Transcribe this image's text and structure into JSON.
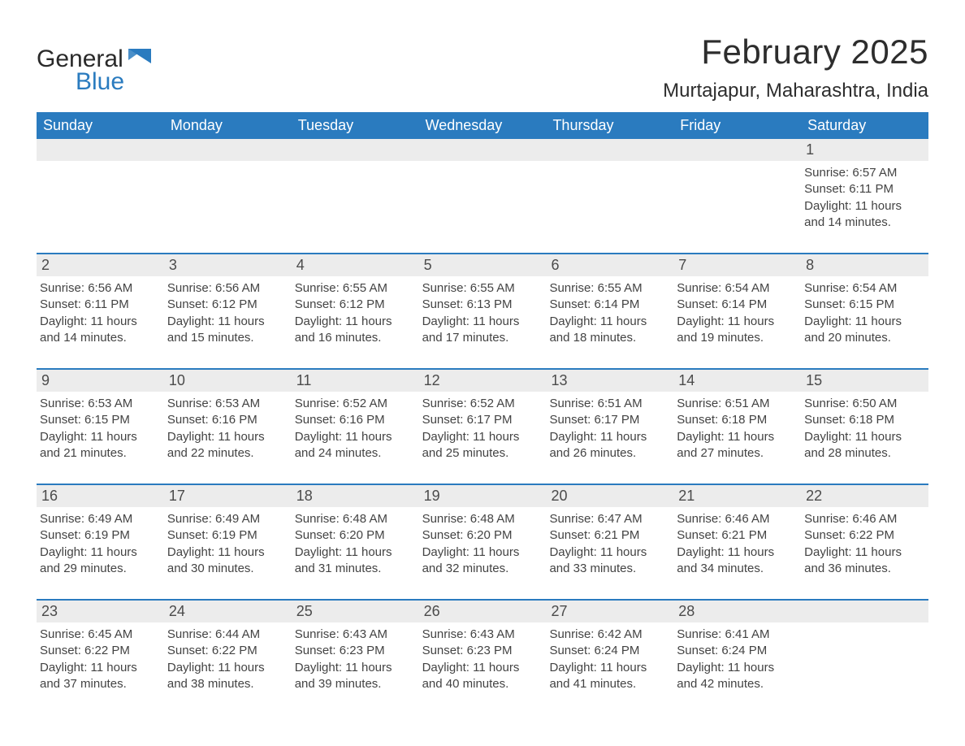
{
  "logo": {
    "word1": "General",
    "word2": "Blue",
    "tri_color": "#2a7bbf"
  },
  "header": {
    "month_title": "February 2025",
    "location": "Murtajapur, Maharashtra, India"
  },
  "colors": {
    "header_bar": "#2a7bbf",
    "header_text": "#ffffff",
    "daynum_bg": "#ececec",
    "week_border": "#2a7bbf",
    "body_text": "#434343"
  },
  "weekdays": [
    "Sunday",
    "Monday",
    "Tuesday",
    "Wednesday",
    "Thursday",
    "Friday",
    "Saturday"
  ],
  "weeks": [
    [
      null,
      null,
      null,
      null,
      null,
      null,
      {
        "n": "1",
        "sunrise": "Sunrise: 6:57 AM",
        "sunset": "Sunset: 6:11 PM",
        "day": "Daylight: 11 hours and 14 minutes."
      }
    ],
    [
      {
        "n": "2",
        "sunrise": "Sunrise: 6:56 AM",
        "sunset": "Sunset: 6:11 PM",
        "day": "Daylight: 11 hours and 14 minutes."
      },
      {
        "n": "3",
        "sunrise": "Sunrise: 6:56 AM",
        "sunset": "Sunset: 6:12 PM",
        "day": "Daylight: 11 hours and 15 minutes."
      },
      {
        "n": "4",
        "sunrise": "Sunrise: 6:55 AM",
        "sunset": "Sunset: 6:12 PM",
        "day": "Daylight: 11 hours and 16 minutes."
      },
      {
        "n": "5",
        "sunrise": "Sunrise: 6:55 AM",
        "sunset": "Sunset: 6:13 PM",
        "day": "Daylight: 11 hours and 17 minutes."
      },
      {
        "n": "6",
        "sunrise": "Sunrise: 6:55 AM",
        "sunset": "Sunset: 6:14 PM",
        "day": "Daylight: 11 hours and 18 minutes."
      },
      {
        "n": "7",
        "sunrise": "Sunrise: 6:54 AM",
        "sunset": "Sunset: 6:14 PM",
        "day": "Daylight: 11 hours and 19 minutes."
      },
      {
        "n": "8",
        "sunrise": "Sunrise: 6:54 AM",
        "sunset": "Sunset: 6:15 PM",
        "day": "Daylight: 11 hours and 20 minutes."
      }
    ],
    [
      {
        "n": "9",
        "sunrise": "Sunrise: 6:53 AM",
        "sunset": "Sunset: 6:15 PM",
        "day": "Daylight: 11 hours and 21 minutes."
      },
      {
        "n": "10",
        "sunrise": "Sunrise: 6:53 AM",
        "sunset": "Sunset: 6:16 PM",
        "day": "Daylight: 11 hours and 22 minutes."
      },
      {
        "n": "11",
        "sunrise": "Sunrise: 6:52 AM",
        "sunset": "Sunset: 6:16 PM",
        "day": "Daylight: 11 hours and 24 minutes."
      },
      {
        "n": "12",
        "sunrise": "Sunrise: 6:52 AM",
        "sunset": "Sunset: 6:17 PM",
        "day": "Daylight: 11 hours and 25 minutes."
      },
      {
        "n": "13",
        "sunrise": "Sunrise: 6:51 AM",
        "sunset": "Sunset: 6:17 PM",
        "day": "Daylight: 11 hours and 26 minutes."
      },
      {
        "n": "14",
        "sunrise": "Sunrise: 6:51 AM",
        "sunset": "Sunset: 6:18 PM",
        "day": "Daylight: 11 hours and 27 minutes."
      },
      {
        "n": "15",
        "sunrise": "Sunrise: 6:50 AM",
        "sunset": "Sunset: 6:18 PM",
        "day": "Daylight: 11 hours and 28 minutes."
      }
    ],
    [
      {
        "n": "16",
        "sunrise": "Sunrise: 6:49 AM",
        "sunset": "Sunset: 6:19 PM",
        "day": "Daylight: 11 hours and 29 minutes."
      },
      {
        "n": "17",
        "sunrise": "Sunrise: 6:49 AM",
        "sunset": "Sunset: 6:19 PM",
        "day": "Daylight: 11 hours and 30 minutes."
      },
      {
        "n": "18",
        "sunrise": "Sunrise: 6:48 AM",
        "sunset": "Sunset: 6:20 PM",
        "day": "Daylight: 11 hours and 31 minutes."
      },
      {
        "n": "19",
        "sunrise": "Sunrise: 6:48 AM",
        "sunset": "Sunset: 6:20 PM",
        "day": "Daylight: 11 hours and 32 minutes."
      },
      {
        "n": "20",
        "sunrise": "Sunrise: 6:47 AM",
        "sunset": "Sunset: 6:21 PM",
        "day": "Daylight: 11 hours and 33 minutes."
      },
      {
        "n": "21",
        "sunrise": "Sunrise: 6:46 AM",
        "sunset": "Sunset: 6:21 PM",
        "day": "Daylight: 11 hours and 34 minutes."
      },
      {
        "n": "22",
        "sunrise": "Sunrise: 6:46 AM",
        "sunset": "Sunset: 6:22 PM",
        "day": "Daylight: 11 hours and 36 minutes."
      }
    ],
    [
      {
        "n": "23",
        "sunrise": "Sunrise: 6:45 AM",
        "sunset": "Sunset: 6:22 PM",
        "day": "Daylight: 11 hours and 37 minutes."
      },
      {
        "n": "24",
        "sunrise": "Sunrise: 6:44 AM",
        "sunset": "Sunset: 6:22 PM",
        "day": "Daylight: 11 hours and 38 minutes."
      },
      {
        "n": "25",
        "sunrise": "Sunrise: 6:43 AM",
        "sunset": "Sunset: 6:23 PM",
        "day": "Daylight: 11 hours and 39 minutes."
      },
      {
        "n": "26",
        "sunrise": "Sunrise: 6:43 AM",
        "sunset": "Sunset: 6:23 PM",
        "day": "Daylight: 11 hours and 40 minutes."
      },
      {
        "n": "27",
        "sunrise": "Sunrise: 6:42 AM",
        "sunset": "Sunset: 6:24 PM",
        "day": "Daylight: 11 hours and 41 minutes."
      },
      {
        "n": "28",
        "sunrise": "Sunrise: 6:41 AM",
        "sunset": "Sunset: 6:24 PM",
        "day": "Daylight: 11 hours and 42 minutes."
      },
      null
    ]
  ]
}
